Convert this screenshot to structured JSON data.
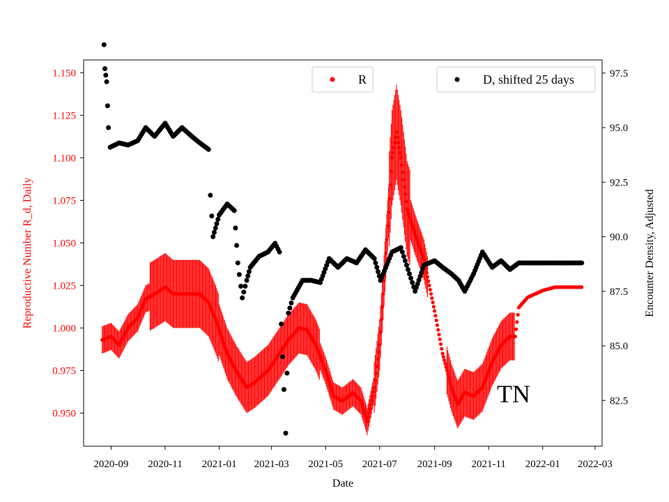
{
  "chart_data": {
    "type": "scatter",
    "region_label": "TN",
    "xlabel": "Date",
    "ylabel_left": "Reproductive Number R_d, Daily",
    "ylabel_right": "Encounter Density, Adjusted",
    "xlim": [
      "2020-08-01",
      "2022-03-09"
    ],
    "ylim_left": [
      0.9305,
      1.1575
    ],
    "ylim_right": [
      80.4,
      98.1
    ],
    "x_ticks": [
      "2020-09",
      "2020-11",
      "2021-01",
      "2021-03",
      "2021-05",
      "2021-07",
      "2021-09",
      "2021-11",
      "2022-01",
      "2022-03"
    ],
    "y_ticks_left": [
      "0.950",
      "0.975",
      "1.000",
      "1.025",
      "1.050",
      "1.075",
      "1.100",
      "1.125",
      "1.150"
    ],
    "y_ticks_right": [
      "82.5",
      "85.0",
      "87.5",
      "90.0",
      "92.5",
      "95.0",
      "97.5"
    ],
    "colors": {
      "R": "#ff0000",
      "D": "#000000",
      "left_axis": "#ff0000",
      "right_axis": "#000000"
    },
    "series": [
      {
        "name": "R",
        "axis": "left",
        "color": "#ff0000",
        "points": [
          [
            "2020-08-22",
            0.993
          ],
          [
            "2020-09-01",
            0.995
          ],
          [
            "2020-09-10",
            0.99
          ],
          [
            "2020-09-20",
            1.0
          ],
          [
            "2020-10-01",
            1.006
          ],
          [
            "2020-10-10",
            1.017
          ],
          [
            "2020-10-20",
            1.02
          ],
          [
            "2020-11-01",
            1.024
          ],
          [
            "2020-11-10",
            1.02
          ],
          [
            "2020-11-20",
            1.02
          ],
          [
            "2020-12-01",
            1.02
          ],
          [
            "2020-12-10",
            1.02
          ],
          [
            "2020-12-20",
            1.015
          ],
          [
            "2020-12-28",
            1.005
          ],
          [
            "2021-01-10",
            0.985
          ],
          [
            "2021-01-20",
            0.975
          ],
          [
            "2021-02-01",
            0.965
          ],
          [
            "2021-02-10",
            0.968
          ],
          [
            "2021-02-25",
            0.975
          ],
          [
            "2021-03-10",
            0.985
          ],
          [
            "2021-03-20",
            0.993
          ],
          [
            "2021-04-01",
            1.0
          ],
          [
            "2021-04-10",
            0.999
          ],
          [
            "2021-04-20",
            0.99
          ],
          [
            "2021-05-01",
            0.975
          ],
          [
            "2021-05-10",
            0.96
          ],
          [
            "2021-05-20",
            0.957
          ],
          [
            "2021-06-01",
            0.962
          ],
          [
            "2021-06-10",
            0.957
          ],
          [
            "2021-06-17",
            0.945
          ],
          [
            "2021-06-25",
            0.965
          ],
          [
            "2021-07-01",
            0.99
          ],
          [
            "2021-07-05",
            1.02
          ],
          [
            "2021-07-10",
            1.06
          ],
          [
            "2021-07-15",
            1.1
          ],
          [
            "2021-07-20",
            1.115
          ],
          [
            "2021-07-25",
            1.1
          ],
          [
            "2021-08-01",
            1.07
          ],
          [
            "2021-08-10",
            1.055
          ],
          [
            "2021-08-20",
            1.04
          ],
          [
            "2021-09-01",
            1.01
          ],
          [
            "2021-09-10",
            0.985
          ],
          [
            "2021-09-20",
            0.965
          ],
          [
            "2021-09-27",
            0.955
          ],
          [
            "2021-10-05",
            0.962
          ],
          [
            "2021-10-15",
            0.96
          ],
          [
            "2021-10-25",
            0.965
          ],
          [
            "2021-11-05",
            0.98
          ],
          [
            "2021-11-15",
            0.99
          ],
          [
            "2021-11-25",
            0.995
          ],
          [
            "2021-12-01",
            0.995
          ],
          [
            "2021-12-05",
            1.012
          ],
          [
            "2021-12-15",
            1.018
          ],
          [
            "2022-01-01",
            1.022
          ],
          [
            "2022-01-15",
            1.024
          ],
          [
            "2022-02-01",
            1.024
          ],
          [
            "2022-02-14",
            1.024
          ]
        ]
      },
      {
        "name": "D, shifted 25 days",
        "axis": "right",
        "color": "#000000",
        "points": [
          [
            "2020-08-24",
            98.8
          ],
          [
            "2020-08-25",
            97.7
          ],
          [
            "2020-08-26",
            97.4
          ],
          [
            "2020-08-27",
            97.1
          ],
          [
            "2020-08-28",
            96.0
          ],
          [
            "2020-08-29",
            95.0
          ],
          [
            "2020-08-31",
            94.1
          ],
          [
            "2020-09-10",
            94.3
          ],
          [
            "2020-09-20",
            94.2
          ],
          [
            "2020-10-01",
            94.4
          ],
          [
            "2020-10-10",
            95.0
          ],
          [
            "2020-10-20",
            94.6
          ],
          [
            "2020-11-01",
            95.2
          ],
          [
            "2020-11-10",
            94.6
          ],
          [
            "2020-11-20",
            95.0
          ],
          [
            "2020-12-01",
            94.6
          ],
          [
            "2020-12-10",
            94.3
          ],
          [
            "2020-12-20",
            94.0
          ],
          [
            "2020-12-22",
            91.9
          ],
          [
            "2020-12-25",
            90.0
          ],
          [
            "2021-01-01",
            91.0
          ],
          [
            "2021-01-10",
            91.5
          ],
          [
            "2021-01-18",
            91.2
          ],
          [
            "2021-01-22",
            88.8
          ],
          [
            "2021-01-27",
            87.2
          ],
          [
            "2021-02-01",
            88.0
          ],
          [
            "2021-02-05",
            88.6
          ],
          [
            "2021-02-15",
            89.1
          ],
          [
            "2021-02-25",
            89.3
          ],
          [
            "2021-03-05",
            89.7
          ],
          [
            "2021-03-10",
            89.3
          ],
          [
            "2021-03-12",
            86.0
          ],
          [
            "2021-03-15",
            83.0
          ],
          [
            "2021-03-17",
            81.0
          ],
          [
            "2021-03-20",
            86.5
          ],
          [
            "2021-03-25",
            87.2
          ],
          [
            "2021-04-05",
            88.0
          ],
          [
            "2021-04-15",
            88.0
          ],
          [
            "2021-04-25",
            87.9
          ],
          [
            "2021-05-05",
            89.0
          ],
          [
            "2021-05-15",
            88.6
          ],
          [
            "2021-05-25",
            89.0
          ],
          [
            "2021-06-05",
            88.8
          ],
          [
            "2021-06-15",
            89.4
          ],
          [
            "2021-06-25",
            89.0
          ],
          [
            "2021-07-02",
            88.0
          ],
          [
            "2021-07-15",
            89.3
          ],
          [
            "2021-07-25",
            89.5
          ],
          [
            "2021-08-02",
            88.5
          ],
          [
            "2021-08-10",
            87.5
          ],
          [
            "2021-08-20",
            88.7
          ],
          [
            "2021-09-01",
            88.9
          ],
          [
            "2021-09-10",
            88.6
          ],
          [
            "2021-09-20",
            88.3
          ],
          [
            "2021-09-28",
            88.0
          ],
          [
            "2021-10-05",
            87.5
          ],
          [
            "2021-10-15",
            88.3
          ],
          [
            "2021-10-25",
            89.3
          ],
          [
            "2021-11-05",
            88.6
          ],
          [
            "2021-11-15",
            88.9
          ],
          [
            "2021-11-25",
            88.5
          ],
          [
            "2021-12-05",
            88.8
          ],
          [
            "2021-12-20",
            88.8
          ],
          [
            "2022-01-05",
            88.8
          ],
          [
            "2022-01-20",
            88.8
          ],
          [
            "2022-02-01",
            88.8
          ],
          [
            "2022-02-14",
            88.8
          ]
        ]
      }
    ],
    "legend_R": "R",
    "legend_D": "D, shifted 25 days"
  }
}
